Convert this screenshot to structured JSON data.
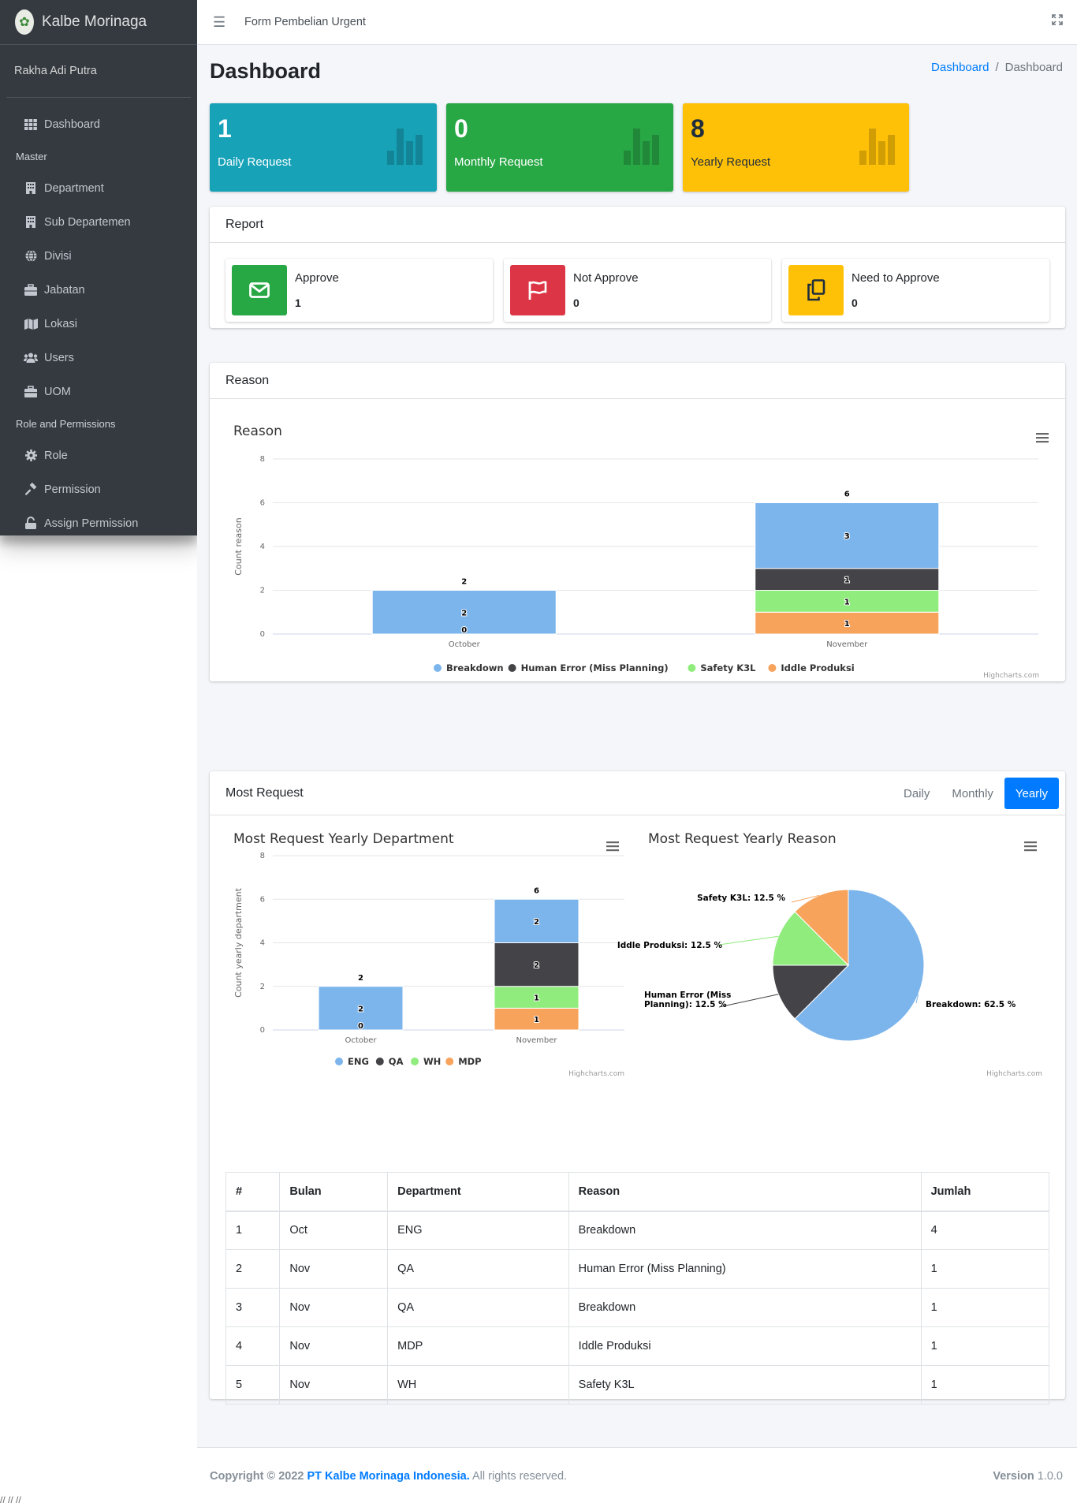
{
  "brand": {
    "name": "Kalbe Morinaga"
  },
  "user": {
    "name": "Rakha Adi Putra"
  },
  "sidebar": {
    "items": [
      {
        "label": "Dashboard",
        "icon": "th-icon"
      },
      {
        "header": "Master"
      },
      {
        "label": "Department",
        "icon": "building-icon"
      },
      {
        "label": "Sub Departemen",
        "icon": "building-icon"
      },
      {
        "label": "Divisi",
        "icon": "globe-icon"
      },
      {
        "label": "Jabatan",
        "icon": "briefcase-icon"
      },
      {
        "label": "Lokasi",
        "icon": "map-icon"
      },
      {
        "label": "Users",
        "icon": "users-icon"
      },
      {
        "label": "UOM",
        "icon": "toolbox-icon"
      },
      {
        "header": "Role and Permissions"
      },
      {
        "label": "Role",
        "icon": "cog-icon"
      },
      {
        "label": "Permission",
        "icon": "gavel-icon"
      },
      {
        "label": "Assign Permission",
        "icon": "unlock-icon"
      }
    ]
  },
  "topbar": {
    "title": "Form Pembelian Urgent"
  },
  "page": {
    "title": "Dashboard",
    "breadcrumb": [
      "Dashboard",
      "Dashboard"
    ]
  },
  "stats": [
    {
      "value": "1",
      "label": "Daily Request",
      "color": "#17a2b8"
    },
    {
      "value": "0",
      "label": "Monthly Request",
      "color": "#28a745"
    },
    {
      "value": "8",
      "label": "Yearly Request",
      "color": "#ffc107"
    }
  ],
  "report": {
    "title": "Report",
    "items": [
      {
        "label": "Approve",
        "value": "1",
        "color": "#28a745",
        "icon": "envelope-icon"
      },
      {
        "label": "Not Approve",
        "value": "0",
        "color": "#dc3545",
        "icon": "flag-icon"
      },
      {
        "label": "Need to Approve",
        "value": "0",
        "color": "#ffc107",
        "icon": "copy-icon"
      }
    ]
  },
  "reason_card": {
    "title": "Reason"
  },
  "most_request": {
    "title": "Most Request",
    "tabs": [
      "Daily",
      "Monthly",
      "Yearly"
    ],
    "active_tab": "Yearly"
  },
  "credits": "Highcharts.com",
  "chart_data": [
    {
      "type": "bar",
      "stacked": true,
      "title": "Reason",
      "ylabel": "Count reason",
      "xlabel": "",
      "ylim": [
        0,
        8
      ],
      "yticks": [
        0,
        2,
        4,
        6,
        8
      ],
      "categories": [
        "October",
        "November"
      ],
      "totals": [
        2,
        6
      ],
      "legend_position": "bottom",
      "grid": true,
      "series": [
        {
          "name": "Breakdown",
          "color": "#7cb5ec",
          "values": [
            2,
            3
          ]
        },
        {
          "name": "Human Error (Miss Planning)",
          "color": "#434348",
          "values": [
            0,
            1
          ]
        },
        {
          "name": "Safety K3L",
          "color": "#90ed7d",
          "values": [
            0,
            1
          ]
        },
        {
          "name": "Iddle Produksi",
          "color": "#f7a35c",
          "values": [
            0,
            1
          ]
        }
      ]
    },
    {
      "type": "bar",
      "stacked": true,
      "title": "Most Request Yearly Department",
      "ylabel": "Count yearly department",
      "xlabel": "",
      "ylim": [
        0,
        8
      ],
      "yticks": [
        0,
        2,
        4,
        6,
        8
      ],
      "categories": [
        "October",
        "November"
      ],
      "totals": [
        2,
        6
      ],
      "legend_position": "bottom",
      "grid": true,
      "series": [
        {
          "name": "ENG",
          "color": "#7cb5ec",
          "values": [
            2,
            2
          ]
        },
        {
          "name": "QA",
          "color": "#434348",
          "values": [
            0,
            2
          ]
        },
        {
          "name": "WH",
          "color": "#90ed7d",
          "values": [
            0,
            1
          ]
        },
        {
          "name": "MDP",
          "color": "#f7a35c",
          "values": [
            0,
            1
          ]
        }
      ]
    },
    {
      "type": "pie",
      "title": "Most Request Yearly Reason",
      "slices": [
        {
          "name": "Breakdown",
          "value": 62.5,
          "color": "#7cb5ec",
          "label": "Breakdown: 62.5 %"
        },
        {
          "name": "Human Error (Miss Planning)",
          "value": 12.5,
          "color": "#434348",
          "label": "Human Error (Miss Planning): 12.5 %"
        },
        {
          "name": "Iddle Produksi",
          "value": 12.5,
          "color": "#90ed7d",
          "label": "Iddle Produksi: 12.5 %"
        },
        {
          "name": "Safety K3L",
          "value": 12.5,
          "color": "#f7a35c",
          "label": "Safety K3L: 12.5 %"
        }
      ]
    }
  ],
  "table": {
    "headers": [
      "#",
      "Bulan",
      "Department",
      "Reason",
      "Jumlah"
    ],
    "rows": [
      [
        "1",
        "Oct",
        "ENG",
        "Breakdown",
        "4"
      ],
      [
        "2",
        "Nov",
        "QA",
        "Human Error (Miss Planning)",
        "1"
      ],
      [
        "3",
        "Nov",
        "QA",
        "Breakdown",
        "1"
      ],
      [
        "4",
        "Nov",
        "MDP",
        "Iddle Produksi",
        "1"
      ],
      [
        "5",
        "Nov",
        "WH",
        "Safety K3L",
        "1"
      ]
    ]
  },
  "footer": {
    "copyright_prefix": "Copyright © 2022",
    "company": "PT Kalbe Morinaga Indonesia.",
    "rights": "All rights reserved.",
    "version_label": "Version",
    "version": "1.0.0"
  },
  "scribble": "// // //"
}
